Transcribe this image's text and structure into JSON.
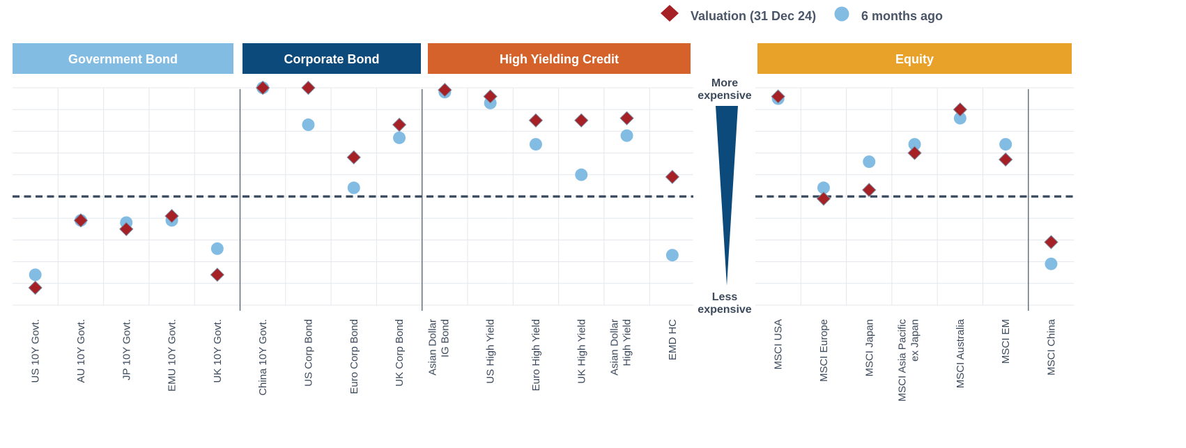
{
  "chart_data": {
    "type": "scatter",
    "legend": {
      "placement": "top-right",
      "entries": [
        {
          "name": "Valuation (31 Dec 24)",
          "marker": "diamond",
          "color": "#A52126"
        },
        {
          "name": "6 months ago",
          "marker": "circle",
          "color": "#82BCE3"
        }
      ]
    },
    "scale": {
      "top_label": [
        "More",
        "expensive"
      ],
      "bottom_label": [
        "Less",
        "expensive"
      ]
    },
    "ylim": [
      -5,
      5
    ],
    "grid": true,
    "groups": [
      {
        "label": "Government Bond",
        "color": "#82BCE3",
        "categories": [
          [
            "US 10Y Govt."
          ],
          [
            "AU 10Y Govt."
          ],
          [
            "JP 10Y Govt."
          ],
          [
            "EMU 10Y Govt."
          ],
          [
            "UK 10Y Govt."
          ]
        ],
        "valuation": [
          -4.2,
          -1.1,
          -1.5,
          -0.9,
          -3.6
        ],
        "six_months_ago": [
          -3.6,
          -1.1,
          -1.2,
          -1.1,
          -2.4
        ]
      },
      {
        "label": "Corporate Bond",
        "color": "#0B4A7B",
        "categories": [
          [
            "China 10Y Govt."
          ],
          [
            "US Corp Bond"
          ],
          [
            "Euro Corp Bond"
          ],
          [
            "UK Corp Bond"
          ]
        ],
        "valuation": [
          5.0,
          5.0,
          1.8,
          3.3
        ],
        "six_months_ago": [
          5.0,
          3.3,
          0.4,
          2.7
        ]
      },
      {
        "label": "High Yielding Credit",
        "color": "#D4622A",
        "categories": [
          [
            "Asian Dollar",
            "IG Bond"
          ],
          [
            "US High Yield"
          ],
          [
            "Euro High Yield"
          ],
          [
            "UK High Yield"
          ],
          [
            "Asian Dollar",
            "High Yield"
          ],
          [
            "EMD HC"
          ]
        ],
        "valuation": [
          4.9,
          4.6,
          3.5,
          3.5,
          3.6,
          0.9
        ],
        "six_months_ago": [
          4.8,
          4.3,
          2.4,
          1.0,
          2.8,
          -2.7
        ]
      },
      {
        "label": "Equity",
        "color": "#E8A229",
        "categories": [
          [
            "MSCI USA"
          ],
          [
            "MSCI Europe"
          ],
          [
            "MSCI Japan"
          ],
          [
            "MSCI Asia Pacific",
            "ex Japan"
          ],
          [
            "MSCI Australia"
          ],
          [
            "MSCI EM"
          ]
        ],
        "valuation": [
          4.6,
          -0.1,
          0.3,
          2.0,
          4.0,
          1.7
        ],
        "six_months_ago": [
          4.5,
          0.4,
          1.6,
          2.4,
          3.6,
          2.4
        ]
      },
      {
        "label": "",
        "color": "#E8A229",
        "categories": [
          [
            "MSCI China"
          ]
        ],
        "valuation": [
          -2.1
        ],
        "six_months_ago": [
          -3.1
        ]
      }
    ]
  }
}
